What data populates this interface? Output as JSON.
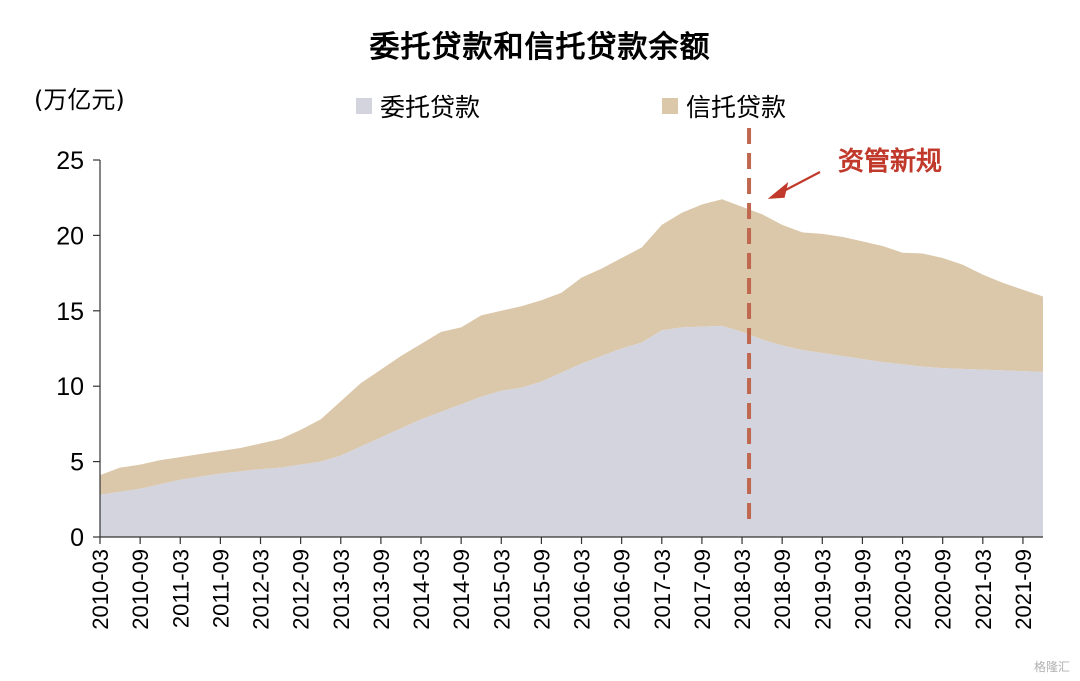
{
  "chart_data": {
    "type": "area",
    "stacked": true,
    "title": "委托贷款和信托贷款余额",
    "ylabel": "(万亿元)",
    "ylim": [
      0,
      25
    ],
    "yticks": [
      0,
      5,
      10,
      15,
      20,
      25
    ],
    "x_tick_labels": [
      "2010-03",
      "2010-09",
      "2011-03",
      "2011-09",
      "2012-03",
      "2012-09",
      "2013-03",
      "2013-09",
      "2014-03",
      "2014-09",
      "2015-03",
      "2015-09",
      "2016-03",
      "2016-09",
      "2017-03",
      "2017-09",
      "2018-03",
      "2018-09",
      "2019-03",
      "2019-09",
      "2020-03",
      "2020-09",
      "2021-03",
      "2021-09"
    ],
    "x": [
      "2010-03",
      "2010-06",
      "2010-09",
      "2010-12",
      "2011-03",
      "2011-06",
      "2011-09",
      "2011-12",
      "2012-03",
      "2012-06",
      "2012-09",
      "2012-12",
      "2013-03",
      "2013-06",
      "2013-09",
      "2013-12",
      "2014-03",
      "2014-06",
      "2014-09",
      "2014-12",
      "2015-03",
      "2015-06",
      "2015-09",
      "2015-12",
      "2016-03",
      "2016-06",
      "2016-09",
      "2016-12",
      "2017-03",
      "2017-06",
      "2017-09",
      "2017-12",
      "2018-03",
      "2018-06",
      "2018-09",
      "2018-12",
      "2019-03",
      "2019-06",
      "2019-09",
      "2019-12",
      "2020-03",
      "2020-06",
      "2020-09",
      "2020-12",
      "2021-03",
      "2021-06",
      "2021-09",
      "2021-12"
    ],
    "series": [
      {
        "name": "委托贷款",
        "color": "#d3d4de",
        "values": [
          2.8,
          3.0,
          3.2,
          3.5,
          3.8,
          4.0,
          4.2,
          4.35,
          4.5,
          4.6,
          4.8,
          5.0,
          5.4,
          6.0,
          6.6,
          7.2,
          7.8,
          8.3,
          8.8,
          9.3,
          9.7,
          9.9,
          10.3,
          10.9,
          11.5,
          12.0,
          12.5,
          12.9,
          13.7,
          13.9,
          13.95,
          14.0,
          13.6,
          13.1,
          12.7,
          12.4,
          12.2,
          12.0,
          11.8,
          11.6,
          11.45,
          11.3,
          11.2,
          11.15,
          11.1,
          11.05,
          11.0,
          10.95
        ]
      },
      {
        "name": "信托贷款",
        "color": "#dbc7a9",
        "values": [
          1.3,
          1.6,
          1.6,
          1.6,
          1.5,
          1.5,
          1.5,
          1.55,
          1.7,
          1.9,
          2.3,
          2.8,
          3.6,
          4.2,
          4.5,
          4.8,
          5.0,
          5.3,
          5.1,
          5.4,
          5.3,
          5.4,
          5.4,
          5.3,
          5.7,
          5.8,
          6.0,
          6.3,
          7.0,
          7.6,
          8.1,
          8.4,
          8.3,
          8.3,
          8.0,
          7.8,
          7.9,
          7.9,
          7.8,
          7.7,
          7.4,
          7.5,
          7.3,
          6.9,
          6.3,
          5.8,
          5.4,
          5.0
        ]
      }
    ],
    "annotation": {
      "text": "资管新规",
      "x": "2018-03",
      "color": "#c0392b"
    },
    "legend": "top",
    "grid": false
  },
  "watermark": "格隆汇"
}
